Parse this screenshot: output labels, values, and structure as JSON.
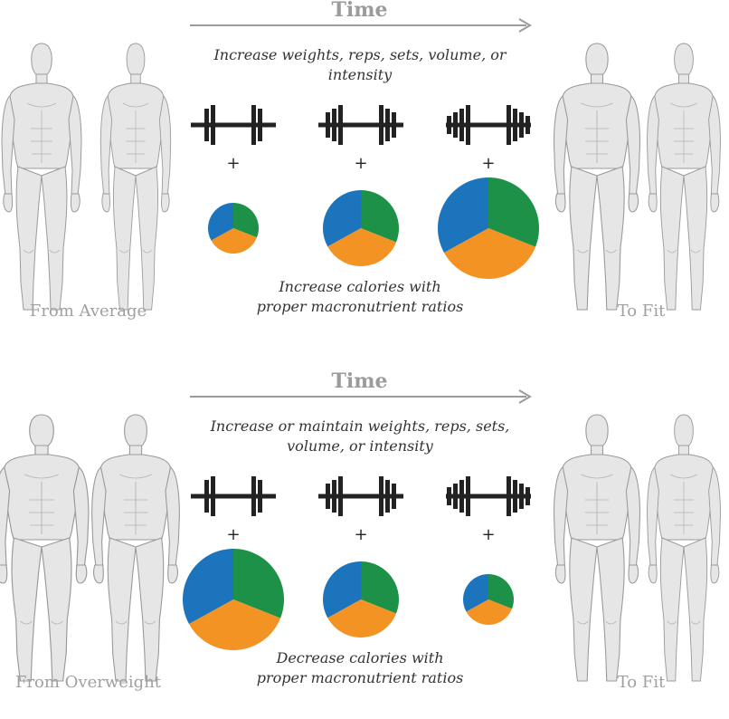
{
  "colors": {
    "protein": "#1e9148",
    "carbs": "#f39323",
    "fat": "#1c75bc",
    "arrow": "#9b9b9b",
    "barbell": "#222222",
    "body_fill": "#e6e6e6",
    "body_stroke": "#9a9a9a"
  },
  "panels": [
    {
      "time_label": "Time",
      "instruction": "Increase weights, reps, sets, volume, or intensity",
      "calorie_note_line1": "Increase calories with",
      "calorie_note_line2": "proper macronutrient ratios",
      "from_label": "From Average",
      "to_label": "To Fit",
      "plus_sign": "+",
      "barbell_plates": [
        2,
        3,
        4
      ],
      "calorie_levels": [
        1,
        2,
        3
      ],
      "macro_ratio": {
        "protein": 0.31,
        "carbs": 0.36,
        "fat": 0.33
      }
    },
    {
      "time_label": "Time",
      "instruction": "Increase or maintain weights, reps, sets, volume, or intensity",
      "calorie_note_line1": "Decrease calories with",
      "calorie_note_line2": "proper macronutrient ratios",
      "from_label": "From Overweight",
      "to_label": "To Fit",
      "plus_sign": "+",
      "barbell_plates": [
        2,
        3,
        4
      ],
      "calorie_levels": [
        3,
        2,
        1
      ],
      "macro_ratio": {
        "protein": 0.31,
        "carbs": 0.36,
        "fat": 0.33
      }
    }
  ]
}
